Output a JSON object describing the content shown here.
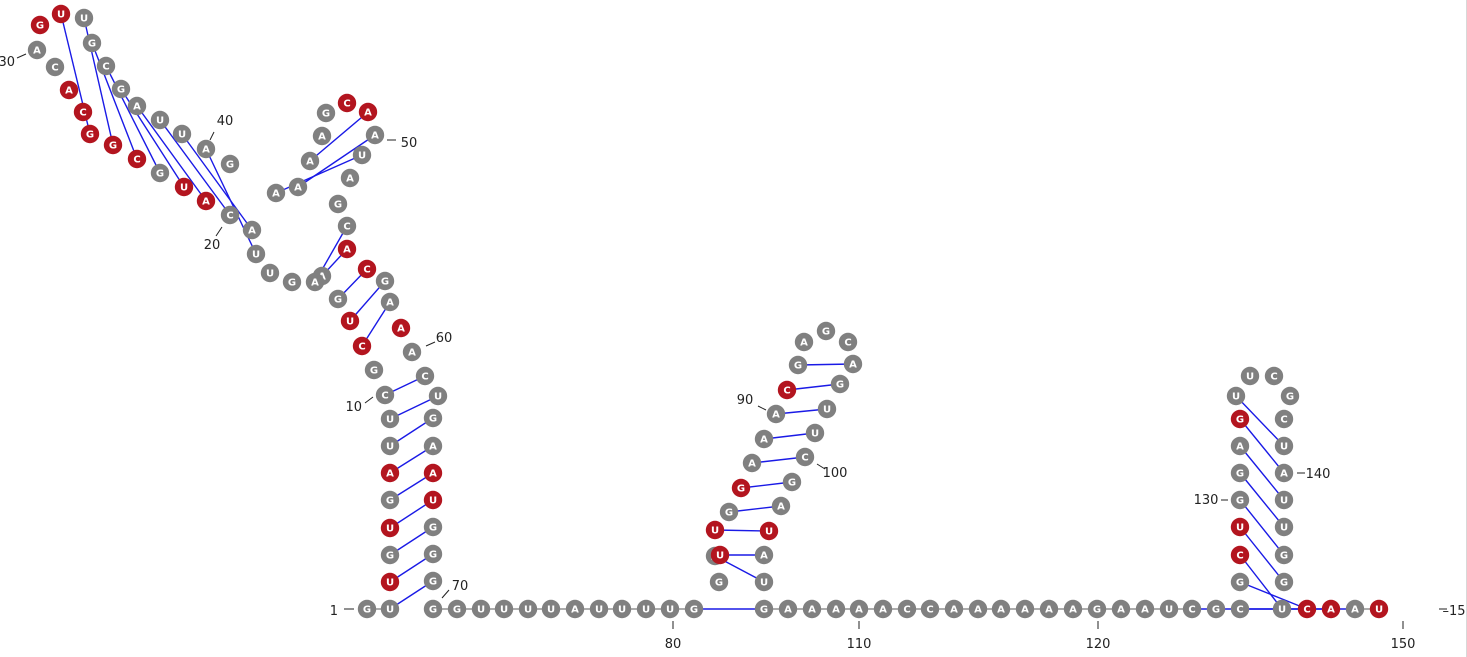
{
  "colors": {
    "unpaired": "#808080",
    "highlight": "#b3151f",
    "bond": "#1a1ae6",
    "text": "#222222"
  },
  "sequence": [
    "G",
    "U",
    "U",
    "G",
    "U",
    "G",
    "A",
    "U",
    "U",
    "C",
    "G",
    "C",
    "U",
    "G",
    "A",
    "A",
    "G",
    "U",
    "U",
    "A",
    "C",
    "A",
    "U",
    "G",
    "C",
    "G",
    "G",
    "C",
    "A",
    "C",
    "A",
    "G",
    "U",
    "U",
    "G",
    "C",
    "G",
    "A",
    "U",
    "U",
    "A",
    "G",
    "A",
    "A",
    "A",
    "A",
    "G",
    "C",
    "A",
    "A",
    "U",
    "A",
    "G",
    "C",
    "A",
    "C",
    "G",
    "A",
    "A",
    "A",
    "C",
    "U",
    "G",
    "A",
    "A",
    "U",
    "G",
    "G",
    "G",
    "G",
    "G",
    "U",
    "U",
    "U",
    "U",
    "A",
    "U",
    "U",
    "U",
    "U",
    "G",
    "G",
    "A",
    "U",
    "U",
    "G",
    "G",
    "A",
    "A",
    "A",
    "C",
    "G",
    "A",
    "G",
    "C",
    "A",
    "G",
    "U",
    "U",
    "C",
    "G",
    "A",
    "U",
    "A",
    "U",
    "G",
    "A",
    "A",
    "A",
    "A",
    "A",
    "C",
    "C",
    "A",
    "A",
    "A",
    "A",
    "A",
    "A",
    "G",
    "A",
    "A",
    "U",
    "C",
    "G",
    "C",
    "G",
    "C",
    "U",
    "G",
    "G",
    "A",
    "G",
    "U",
    "U",
    "C",
    "G",
    "C",
    "U",
    "A",
    "U",
    "U",
    "G",
    "G",
    "U",
    "C",
    "A",
    "A",
    "U"
  ],
  "highlight_positions": [
    3,
    5,
    7,
    12,
    13,
    22,
    23,
    25,
    26,
    27,
    28,
    29,
    32,
    33,
    48,
    49,
    55,
    56,
    59,
    65,
    66,
    84,
    85,
    87,
    91,
    103,
    128,
    129,
    133,
    146,
    147,
    149,
    150
  ],
  "numbers": [
    {
      "label": "1",
      "pos": 1
    },
    {
      "label": "10",
      "pos": 10
    },
    {
      "label": "20",
      "pos": 20
    },
    {
      "label": "30",
      "pos": 30
    },
    {
      "label": "40",
      "pos": 40
    },
    {
      "label": "50",
      "pos": 50
    },
    {
      "label": "60",
      "pos": 60
    },
    {
      "label": "70",
      "pos": 70
    },
    {
      "label": "80",
      "pos": 80
    },
    {
      "label": "90",
      "pos": 90
    },
    {
      "label": "100",
      "pos": 100
    },
    {
      "label": "110",
      "pos": 110
    },
    {
      "label": "120",
      "pos": 120
    },
    {
      "label": "130",
      "pos": 130
    },
    {
      "label": "140",
      "pos": 140
    },
    {
      "label": "150",
      "pos": 150
    },
    {
      "label": "–15",
      "pos": 153
    }
  ],
  "pairs": [
    [
      2,
      69
    ],
    [
      3,
      68
    ],
    [
      4,
      67
    ],
    [
      5,
      66
    ],
    [
      6,
      65
    ],
    [
      7,
      64
    ],
    [
      8,
      63
    ],
    [
      9,
      62
    ],
    [
      10,
      61
    ],
    [
      12,
      58
    ],
    [
      13,
      57
    ],
    [
      14,
      56
    ],
    [
      15,
      55
    ],
    [
      16,
      54
    ],
    [
      19,
      41
    ],
    [
      20,
      40
    ],
    [
      21,
      39
    ],
    [
      22,
      38
    ],
    [
      23,
      37
    ],
    [
      24,
      36
    ],
    [
      25,
      35
    ],
    [
      26,
      34
    ],
    [
      27,
      33
    ],
    [
      43,
      51
    ],
    [
      44,
      50
    ],
    [
      45,
      49
    ],
    [
      81,
      106
    ],
    [
      83,
      105
    ],
    [
      84,
      104
    ],
    [
      85,
      103
    ],
    [
      86,
      102
    ],
    [
      87,
      101
    ],
    [
      88,
      100
    ],
    [
      89,
      99
    ],
    [
      90,
      98
    ],
    [
      91,
      97
    ],
    [
      92,
      96
    ],
    [
      124,
      148
    ],
    [
      126,
      147
    ],
    [
      127,
      146
    ],
    [
      128,
      145
    ],
    [
      129,
      144
    ],
    [
      130,
      143
    ],
    [
      131,
      142
    ],
    [
      132,
      141
    ],
    [
      133,
      140
    ],
    [
      134,
      139
    ]
  ]
}
